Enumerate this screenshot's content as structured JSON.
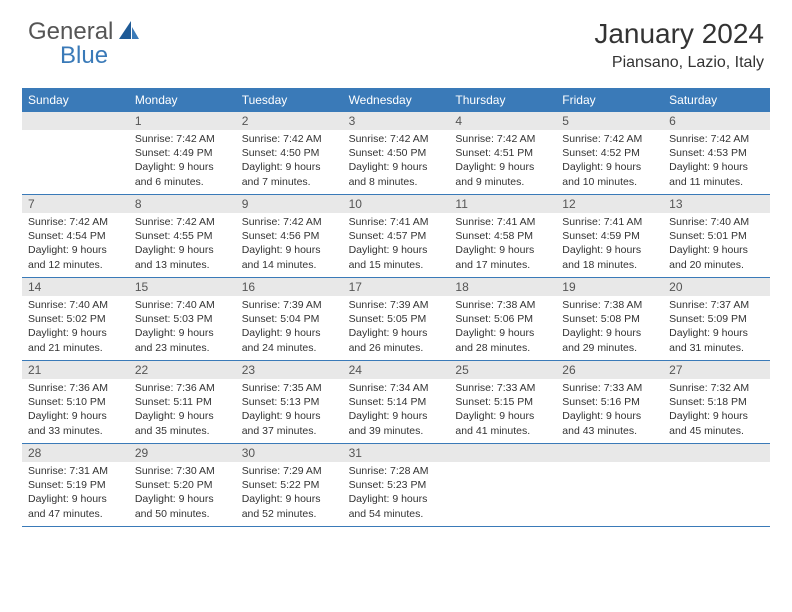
{
  "logo": {
    "general": "General",
    "blue": "Blue"
  },
  "title": "January 2024",
  "location": "Piansano, Lazio, Italy",
  "colors": {
    "header_bg": "#3a7ab8",
    "header_text": "#ffffff",
    "daynum_bg": "#e8e8e8",
    "border": "#3a7ab8",
    "logo_gray": "#555555",
    "logo_blue": "#3a7ab8"
  },
  "day_headers": [
    "Sunday",
    "Monday",
    "Tuesday",
    "Wednesday",
    "Thursday",
    "Friday",
    "Saturday"
  ],
  "weeks": [
    [
      {
        "num": "",
        "sunrise": "",
        "sunset": "",
        "daylight1": "",
        "daylight2": ""
      },
      {
        "num": "1",
        "sunrise": "Sunrise: 7:42 AM",
        "sunset": "Sunset: 4:49 PM",
        "daylight1": "Daylight: 9 hours",
        "daylight2": "and 6 minutes."
      },
      {
        "num": "2",
        "sunrise": "Sunrise: 7:42 AM",
        "sunset": "Sunset: 4:50 PM",
        "daylight1": "Daylight: 9 hours",
        "daylight2": "and 7 minutes."
      },
      {
        "num": "3",
        "sunrise": "Sunrise: 7:42 AM",
        "sunset": "Sunset: 4:50 PM",
        "daylight1": "Daylight: 9 hours",
        "daylight2": "and 8 minutes."
      },
      {
        "num": "4",
        "sunrise": "Sunrise: 7:42 AM",
        "sunset": "Sunset: 4:51 PM",
        "daylight1": "Daylight: 9 hours",
        "daylight2": "and 9 minutes."
      },
      {
        "num": "5",
        "sunrise": "Sunrise: 7:42 AM",
        "sunset": "Sunset: 4:52 PM",
        "daylight1": "Daylight: 9 hours",
        "daylight2": "and 10 minutes."
      },
      {
        "num": "6",
        "sunrise": "Sunrise: 7:42 AM",
        "sunset": "Sunset: 4:53 PM",
        "daylight1": "Daylight: 9 hours",
        "daylight2": "and 11 minutes."
      }
    ],
    [
      {
        "num": "7",
        "sunrise": "Sunrise: 7:42 AM",
        "sunset": "Sunset: 4:54 PM",
        "daylight1": "Daylight: 9 hours",
        "daylight2": "and 12 minutes."
      },
      {
        "num": "8",
        "sunrise": "Sunrise: 7:42 AM",
        "sunset": "Sunset: 4:55 PM",
        "daylight1": "Daylight: 9 hours",
        "daylight2": "and 13 minutes."
      },
      {
        "num": "9",
        "sunrise": "Sunrise: 7:42 AM",
        "sunset": "Sunset: 4:56 PM",
        "daylight1": "Daylight: 9 hours",
        "daylight2": "and 14 minutes."
      },
      {
        "num": "10",
        "sunrise": "Sunrise: 7:41 AM",
        "sunset": "Sunset: 4:57 PM",
        "daylight1": "Daylight: 9 hours",
        "daylight2": "and 15 minutes."
      },
      {
        "num": "11",
        "sunrise": "Sunrise: 7:41 AM",
        "sunset": "Sunset: 4:58 PM",
        "daylight1": "Daylight: 9 hours",
        "daylight2": "and 17 minutes."
      },
      {
        "num": "12",
        "sunrise": "Sunrise: 7:41 AM",
        "sunset": "Sunset: 4:59 PM",
        "daylight1": "Daylight: 9 hours",
        "daylight2": "and 18 minutes."
      },
      {
        "num": "13",
        "sunrise": "Sunrise: 7:40 AM",
        "sunset": "Sunset: 5:01 PM",
        "daylight1": "Daylight: 9 hours",
        "daylight2": "and 20 minutes."
      }
    ],
    [
      {
        "num": "14",
        "sunrise": "Sunrise: 7:40 AM",
        "sunset": "Sunset: 5:02 PM",
        "daylight1": "Daylight: 9 hours",
        "daylight2": "and 21 minutes."
      },
      {
        "num": "15",
        "sunrise": "Sunrise: 7:40 AM",
        "sunset": "Sunset: 5:03 PM",
        "daylight1": "Daylight: 9 hours",
        "daylight2": "and 23 minutes."
      },
      {
        "num": "16",
        "sunrise": "Sunrise: 7:39 AM",
        "sunset": "Sunset: 5:04 PM",
        "daylight1": "Daylight: 9 hours",
        "daylight2": "and 24 minutes."
      },
      {
        "num": "17",
        "sunrise": "Sunrise: 7:39 AM",
        "sunset": "Sunset: 5:05 PM",
        "daylight1": "Daylight: 9 hours",
        "daylight2": "and 26 minutes."
      },
      {
        "num": "18",
        "sunrise": "Sunrise: 7:38 AM",
        "sunset": "Sunset: 5:06 PM",
        "daylight1": "Daylight: 9 hours",
        "daylight2": "and 28 minutes."
      },
      {
        "num": "19",
        "sunrise": "Sunrise: 7:38 AM",
        "sunset": "Sunset: 5:08 PM",
        "daylight1": "Daylight: 9 hours",
        "daylight2": "and 29 minutes."
      },
      {
        "num": "20",
        "sunrise": "Sunrise: 7:37 AM",
        "sunset": "Sunset: 5:09 PM",
        "daylight1": "Daylight: 9 hours",
        "daylight2": "and 31 minutes."
      }
    ],
    [
      {
        "num": "21",
        "sunrise": "Sunrise: 7:36 AM",
        "sunset": "Sunset: 5:10 PM",
        "daylight1": "Daylight: 9 hours",
        "daylight2": "and 33 minutes."
      },
      {
        "num": "22",
        "sunrise": "Sunrise: 7:36 AM",
        "sunset": "Sunset: 5:11 PM",
        "daylight1": "Daylight: 9 hours",
        "daylight2": "and 35 minutes."
      },
      {
        "num": "23",
        "sunrise": "Sunrise: 7:35 AM",
        "sunset": "Sunset: 5:13 PM",
        "daylight1": "Daylight: 9 hours",
        "daylight2": "and 37 minutes."
      },
      {
        "num": "24",
        "sunrise": "Sunrise: 7:34 AM",
        "sunset": "Sunset: 5:14 PM",
        "daylight1": "Daylight: 9 hours",
        "daylight2": "and 39 minutes."
      },
      {
        "num": "25",
        "sunrise": "Sunrise: 7:33 AM",
        "sunset": "Sunset: 5:15 PM",
        "daylight1": "Daylight: 9 hours",
        "daylight2": "and 41 minutes."
      },
      {
        "num": "26",
        "sunrise": "Sunrise: 7:33 AM",
        "sunset": "Sunset: 5:16 PM",
        "daylight1": "Daylight: 9 hours",
        "daylight2": "and 43 minutes."
      },
      {
        "num": "27",
        "sunrise": "Sunrise: 7:32 AM",
        "sunset": "Sunset: 5:18 PM",
        "daylight1": "Daylight: 9 hours",
        "daylight2": "and 45 minutes."
      }
    ],
    [
      {
        "num": "28",
        "sunrise": "Sunrise: 7:31 AM",
        "sunset": "Sunset: 5:19 PM",
        "daylight1": "Daylight: 9 hours",
        "daylight2": "and 47 minutes."
      },
      {
        "num": "29",
        "sunrise": "Sunrise: 7:30 AM",
        "sunset": "Sunset: 5:20 PM",
        "daylight1": "Daylight: 9 hours",
        "daylight2": "and 50 minutes."
      },
      {
        "num": "30",
        "sunrise": "Sunrise: 7:29 AM",
        "sunset": "Sunset: 5:22 PM",
        "daylight1": "Daylight: 9 hours",
        "daylight2": "and 52 minutes."
      },
      {
        "num": "31",
        "sunrise": "Sunrise: 7:28 AM",
        "sunset": "Sunset: 5:23 PM",
        "daylight1": "Daylight: 9 hours",
        "daylight2": "and 54 minutes."
      },
      {
        "num": "",
        "sunrise": "",
        "sunset": "",
        "daylight1": "",
        "daylight2": ""
      },
      {
        "num": "",
        "sunrise": "",
        "sunset": "",
        "daylight1": "",
        "daylight2": ""
      },
      {
        "num": "",
        "sunrise": "",
        "sunset": "",
        "daylight1": "",
        "daylight2": ""
      }
    ]
  ]
}
